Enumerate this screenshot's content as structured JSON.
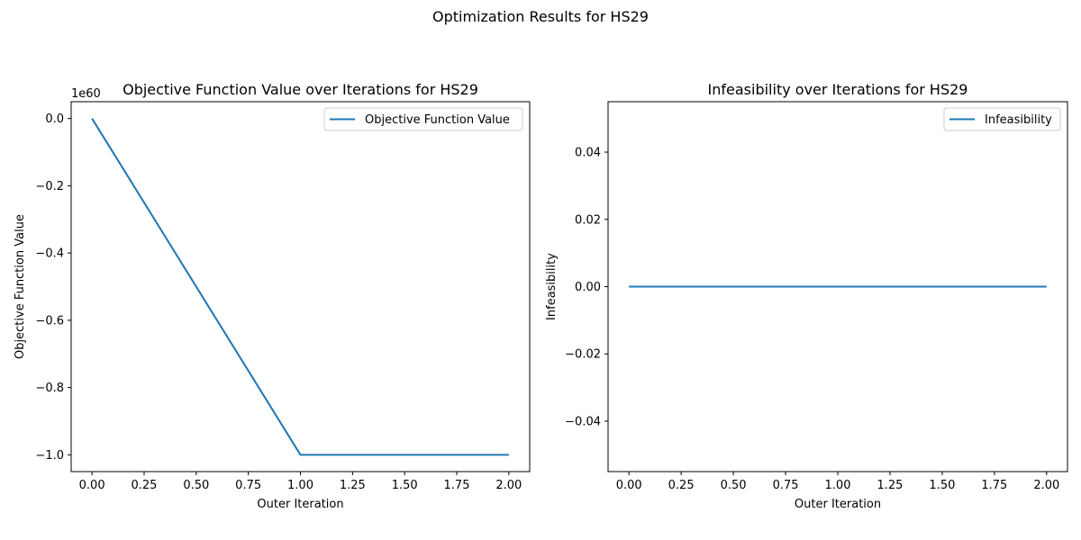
{
  "figure": {
    "suptitle": "Optimization Results for HS29"
  },
  "chart_data": [
    {
      "type": "line",
      "title": "Objective Function Value over Iterations for HS29",
      "xlabel": "Outer Iteration",
      "ylabel": "Objective Function Value",
      "offset_label": "1e60",
      "xlim": [
        -0.1,
        2.1
      ],
      "ylim": [
        -1.05,
        0.05
      ],
      "xticks": [
        0.0,
        0.25,
        0.5,
        0.75,
        1.0,
        1.25,
        1.5,
        1.75,
        2.0
      ],
      "xtick_labels": [
        "0.00",
        "0.25",
        "0.50",
        "0.75",
        "1.00",
        "1.25",
        "1.50",
        "1.75",
        "2.00"
      ],
      "yticks": [
        0.0,
        -0.2,
        -0.4,
        -0.6,
        -0.8,
        -1.0
      ],
      "ytick_labels": [
        "0.0",
        "−0.2",
        "−0.4",
        "−0.6",
        "−0.8",
        "−1.0"
      ],
      "grid": false,
      "legend_position": "top-right",
      "series": [
        {
          "name": "Objective Function Value",
          "color": "#1f77b4",
          "x": [
            0,
            1,
            2
          ],
          "y": [
            0.0,
            -1.0,
            -1.0
          ]
        }
      ]
    },
    {
      "type": "line",
      "title": "Infeasibility over Iterations for HS29",
      "xlabel": "Outer Iteration",
      "ylabel": "Infeasibility",
      "xlim": [
        -0.1,
        2.1
      ],
      "ylim": [
        -0.055,
        0.055
      ],
      "xticks": [
        0.0,
        0.25,
        0.5,
        0.75,
        1.0,
        1.25,
        1.5,
        1.75,
        2.0
      ],
      "xtick_labels": [
        "0.00",
        "0.25",
        "0.50",
        "0.75",
        "1.00",
        "1.25",
        "1.50",
        "1.75",
        "2.00"
      ],
      "yticks": [
        0.04,
        0.02,
        0.0,
        -0.02,
        -0.04
      ],
      "ytick_labels": [
        "0.04",
        "0.02",
        "0.00",
        "−0.02",
        "−0.04"
      ],
      "grid": false,
      "legend_position": "top-right",
      "series": [
        {
          "name": "Infeasibility",
          "color": "#1f77b4",
          "x": [
            0,
            1,
            2
          ],
          "y": [
            0.0,
            0.0,
            0.0
          ]
        }
      ]
    }
  ]
}
